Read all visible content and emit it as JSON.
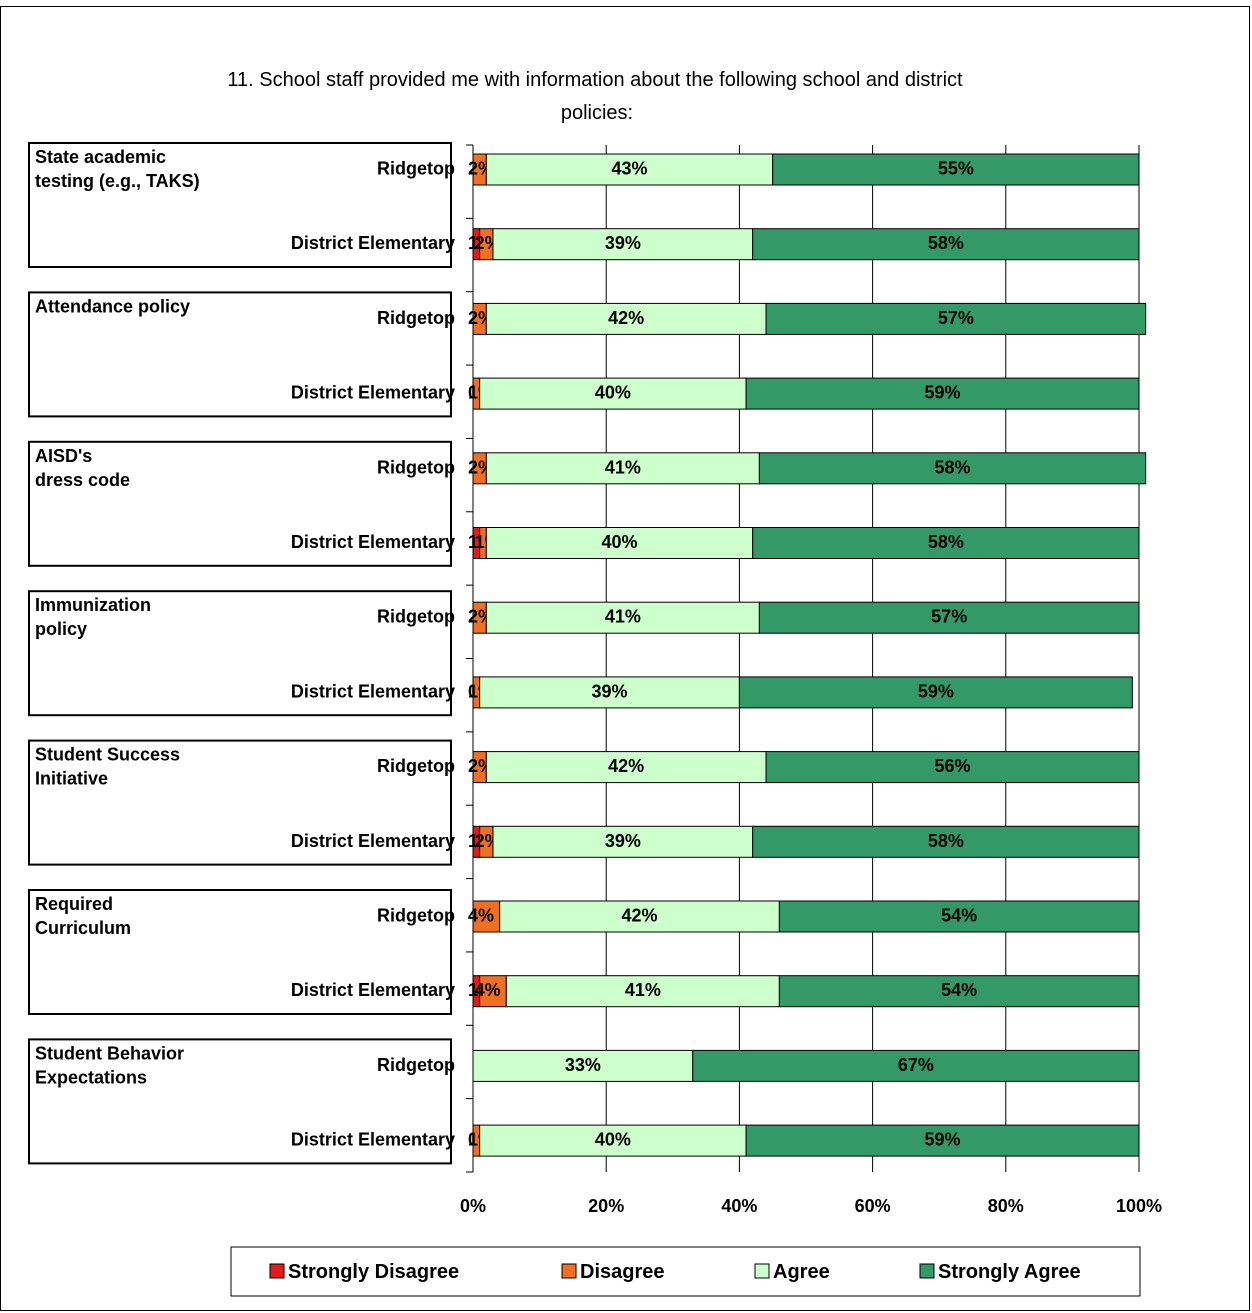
{
  "chart_data": {
    "type": "bar",
    "orientation": "horizontal",
    "stacked": true,
    "title_lines": [
      "11.  School staff provided me with information about the following school and district",
      "policies:"
    ],
    "xlim": [
      0,
      100
    ],
    "x_ticks": [
      "0%",
      "20%",
      "40%",
      "60%",
      "80%",
      "100%"
    ],
    "grid": true,
    "legend_position": "bottom",
    "series": [
      {
        "name": "Strongly Disagree",
        "color": "#e31a1c"
      },
      {
        "name": "Disagree",
        "color": "#f07020"
      },
      {
        "name": "Agree",
        "color": "#ccffcc"
      },
      {
        "name": "Strongly Agree",
        "color": "#339966"
      }
    ],
    "groups": [
      {
        "label_lines": [
          "State academic",
          "testing (e.g., TAKS)"
        ],
        "rows": [
          {
            "label": "Ridgetop",
            "values": [
              0,
              2,
              43,
              55
            ],
            "labels": [
              "",
              "2%",
              "43%",
              "55%"
            ]
          },
          {
            "label": "District Elementary",
            "values": [
              1,
              2,
              39,
              58
            ],
            "labels": [
              "1%",
              "2%",
              "39%",
              "58%"
            ]
          }
        ]
      },
      {
        "label_lines": [
          "Attendance policy"
        ],
        "rows": [
          {
            "label": "Ridgetop",
            "values": [
              0,
              2,
              42,
              57
            ],
            "labels": [
              "",
              "2%",
              "42%",
              "57%"
            ]
          },
          {
            "label": "District Elementary",
            "values": [
              0,
              1,
              40,
              59
            ],
            "labels": [
              "0%",
              "1%",
              "40%",
              "59%"
            ]
          }
        ]
      },
      {
        "label_lines": [
          "AISD's",
          "dress code"
        ],
        "rows": [
          {
            "label": "Ridgetop",
            "values": [
              0,
              2,
              41,
              58
            ],
            "labels": [
              "",
              "2%",
              "41%",
              "58%"
            ]
          },
          {
            "label": "District Elementary",
            "values": [
              1,
              1,
              40,
              58
            ],
            "labels": [
              "1%",
              "1%",
              "40%",
              "58%"
            ]
          }
        ]
      },
      {
        "label_lines": [
          "Immunization",
          "policy"
        ],
        "rows": [
          {
            "label": "Ridgetop",
            "values": [
              0,
              2,
              41,
              57
            ],
            "labels": [
              "",
              "2%",
              "41%",
              "57%"
            ]
          },
          {
            "label": "District Elementary",
            "values": [
              0,
              1,
              39,
              59
            ],
            "labels": [
              "0%",
              "1%",
              "39%",
              "59%"
            ]
          }
        ]
      },
      {
        "label_lines": [
          "Student Success",
          "Initiative"
        ],
        "rows": [
          {
            "label": "Ridgetop",
            "values": [
              0,
              2,
              42,
              56
            ],
            "labels": [
              "",
              "2%",
              "42%",
              "56%"
            ]
          },
          {
            "label": "District Elementary",
            "values": [
              1,
              2,
              39,
              58
            ],
            "labels": [
              "1%",
              "2%",
              "39%",
              "58%"
            ]
          }
        ]
      },
      {
        "label_lines": [
          "Required",
          "Curriculum"
        ],
        "rows": [
          {
            "label": "Ridgetop",
            "values": [
              0,
              4,
              42,
              54
            ],
            "labels": [
              "",
              "4%",
              "42%",
              "54%"
            ]
          },
          {
            "label": "District Elementary",
            "values": [
              1,
              4,
              41,
              54
            ],
            "labels": [
              "1%",
              "4%",
              "41%",
              "54%"
            ]
          }
        ]
      },
      {
        "label_lines": [
          "Student Behavior",
          "Expectations"
        ],
        "rows": [
          {
            "label": "Ridgetop",
            "values": [
              0,
              0,
              33,
              67
            ],
            "labels": [
              "",
              "",
              "33%",
              "67%"
            ]
          },
          {
            "label": "District Elementary",
            "values": [
              0,
              1,
              40,
              59
            ],
            "labels": [
              "0%",
              "1%",
              "40%",
              "59%"
            ]
          }
        ]
      }
    ]
  }
}
